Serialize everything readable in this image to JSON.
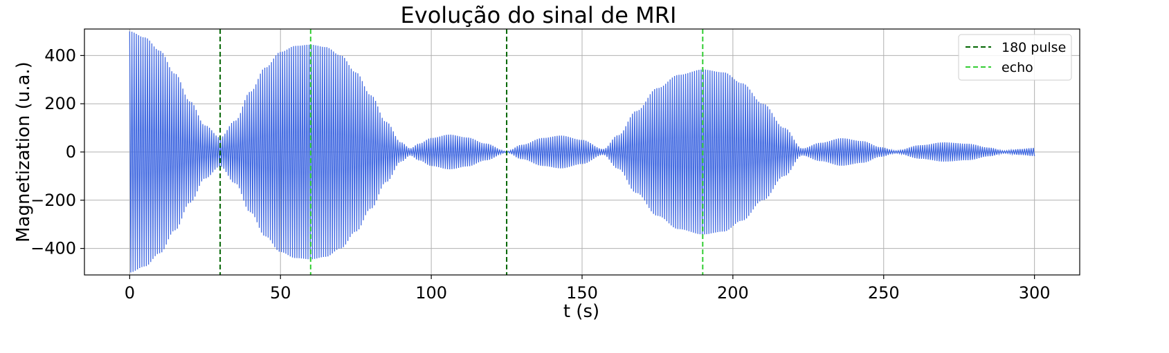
{
  "chart_data": {
    "type": "line",
    "title": "Evolução do sinal de MRI",
    "xlabel": "t (s)",
    "ylabel": "Magnetization (u.a.)",
    "xlim": [
      -15,
      315
    ],
    "ylim": [
      -510,
      510
    ],
    "xticks": [
      0,
      50,
      100,
      150,
      200,
      250,
      300
    ],
    "xtick_labels": [
      "0",
      "50",
      "100",
      "150",
      "200",
      "250",
      "300"
    ],
    "yticks": [
      400,
      200,
      0,
      -200,
      -400
    ],
    "ytick_labels": [
      "400",
      "200",
      "0",
      "−200",
      "−400"
    ],
    "grid": true,
    "legend_position": "top-right",
    "signal": {
      "color": "#4169e1",
      "t_range": [
        0,
        300
      ],
      "envelope": [
        [
          0,
          500
        ],
        [
          5,
          475
        ],
        [
          10,
          420
        ],
        [
          15,
          325
        ],
        [
          20,
          210
        ],
        [
          25,
          110
        ],
        [
          30,
          60
        ],
        [
          35,
          130
        ],
        [
          40,
          250
        ],
        [
          45,
          350
        ],
        [
          50,
          415
        ],
        [
          55,
          440
        ],
        [
          60,
          445
        ],
        [
          65,
          435
        ],
        [
          70,
          400
        ],
        [
          75,
          330
        ],
        [
          80,
          235
        ],
        [
          85,
          125
        ],
        [
          90,
          40
        ],
        [
          93,
          15
        ],
        [
          96,
          35
        ],
        [
          100,
          58
        ],
        [
          106,
          72
        ],
        [
          112,
          60
        ],
        [
          118,
          35
        ],
        [
          125,
          2
        ],
        [
          130,
          30
        ],
        [
          137,
          58
        ],
        [
          143,
          68
        ],
        [
          150,
          50
        ],
        [
          157,
          12
        ],
        [
          162,
          70
        ],
        [
          168,
          170
        ],
        [
          175,
          265
        ],
        [
          182,
          320
        ],
        [
          190,
          342
        ],
        [
          197,
          330
        ],
        [
          203,
          285
        ],
        [
          210,
          200
        ],
        [
          217,
          100
        ],
        [
          223,
          15
        ],
        [
          229,
          38
        ],
        [
          236,
          57
        ],
        [
          243,
          45
        ],
        [
          249,
          20
        ],
        [
          254,
          5
        ],
        [
          262,
          28
        ],
        [
          270,
          40
        ],
        [
          278,
          34
        ],
        [
          285,
          18
        ],
        [
          290,
          5
        ],
        [
          295,
          12
        ],
        [
          300,
          17
        ]
      ]
    },
    "vlines": [
      {
        "name": "180 pulse",
        "color": "#006400",
        "x": [
          30,
          125
        ]
      },
      {
        "name": "echo",
        "color": "#32cd32",
        "x": [
          60,
          190
        ]
      }
    ],
    "legend": [
      {
        "label": "180 pulse",
        "color": "#006400"
      },
      {
        "label": "echo",
        "color": "#32cd32"
      }
    ]
  }
}
